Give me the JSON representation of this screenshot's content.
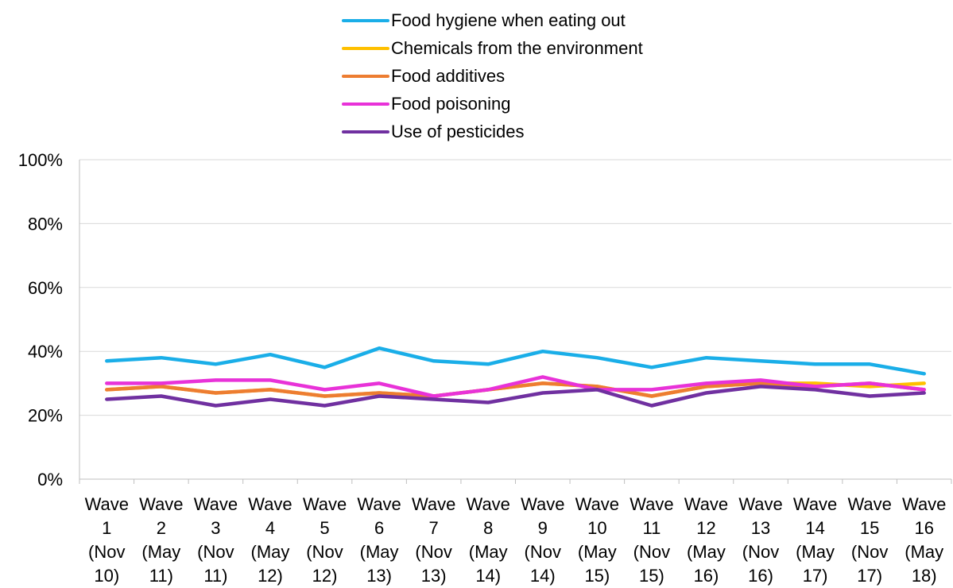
{
  "chart_data": {
    "type": "line",
    "title": "",
    "xlabel": "",
    "ylabel": "",
    "ylim": [
      0,
      100
    ],
    "yticks": [
      "0%",
      "20%",
      "40%",
      "60%",
      "80%",
      "100%"
    ],
    "ytick_values": [
      0,
      20,
      40,
      60,
      80,
      100
    ],
    "grid": true,
    "legend_position": "top-center",
    "categories": [
      [
        "Wave",
        "1",
        "(Nov",
        "10)"
      ],
      [
        "Wave",
        "2",
        "(May",
        "11)"
      ],
      [
        "Wave",
        "3",
        "(Nov",
        "11)"
      ],
      [
        "Wave",
        "4",
        "(May",
        "12)"
      ],
      [
        "Wave",
        "5",
        "(Nov",
        "12)"
      ],
      [
        "Wave",
        "6",
        "(May",
        "13)"
      ],
      [
        "Wave",
        "7",
        "(Nov",
        "13)"
      ],
      [
        "Wave",
        "8",
        "(May",
        "14)"
      ],
      [
        "Wave",
        "9",
        "(Nov",
        "14)"
      ],
      [
        "Wave",
        "10",
        "(May",
        "15)"
      ],
      [
        "Wave",
        "11",
        "(Nov",
        "15)"
      ],
      [
        "Wave",
        "12",
        "(May",
        "16)"
      ],
      [
        "Wave",
        "13",
        "(Nov",
        "16)"
      ],
      [
        "Wave",
        "14",
        "(May",
        "17)"
      ],
      [
        "Wave",
        "15",
        "(Nov",
        "17)"
      ],
      [
        "Wave",
        "16",
        "(May",
        "18)"
      ]
    ],
    "series": [
      {
        "name": "Food hygiene when eating out",
        "color": "#1AAEE8",
        "values": [
          37,
          38,
          36,
          39,
          35,
          41,
          37,
          36,
          40,
          38,
          35,
          38,
          37,
          36,
          36,
          33
        ]
      },
      {
        "name": "Chemicals from the environment",
        "color": "#FFC000",
        "values": [
          28,
          29,
          27,
          28,
          26,
          27,
          26,
          28,
          30,
          29,
          26,
          29,
          30,
          30,
          29,
          30
        ]
      },
      {
        "name": "Food additives",
        "color": "#ED7D31",
        "values": [
          28,
          29,
          27,
          28,
          26,
          27,
          26,
          28,
          30,
          29,
          26,
          29,
          30,
          29,
          30,
          28
        ]
      },
      {
        "name": "Food poisoning",
        "color": "#E832D8",
        "values": [
          30,
          30,
          31,
          31,
          28,
          30,
          26,
          28,
          32,
          28,
          28,
          30,
          31,
          29,
          30,
          28
        ]
      },
      {
        "name": "Use of pesticides",
        "color": "#7030A0",
        "values": [
          25,
          26,
          23,
          25,
          23,
          26,
          25,
          24,
          27,
          28,
          23,
          27,
          29,
          28,
          26,
          27
        ]
      }
    ]
  }
}
